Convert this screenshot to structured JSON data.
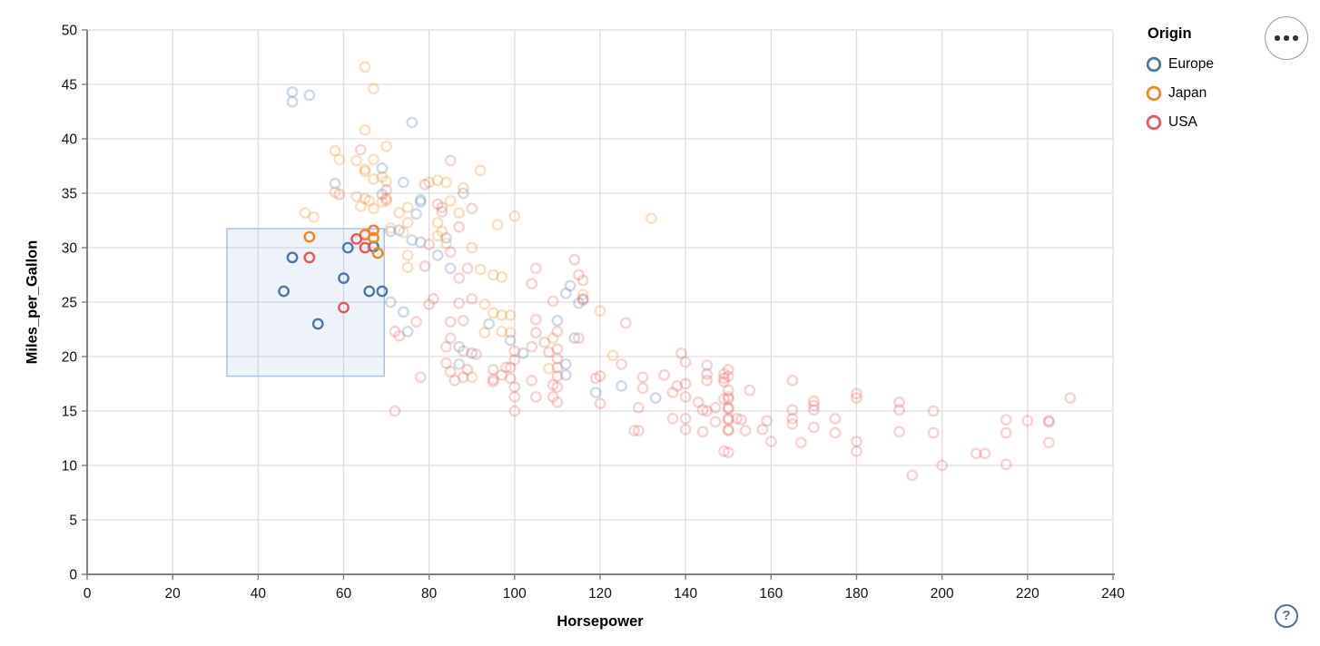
{
  "controls": {
    "menu_icon": "ellipsis-icon",
    "help_icon": "question-mark-icon",
    "help_label": "?"
  },
  "chart_data": {
    "type": "scatter",
    "xlabel": "Horsepower",
    "ylabel": "Miles_per_Gallon",
    "xlim": [
      0,
      240
    ],
    "ylim": [
      0,
      50
    ],
    "xticks": [
      0,
      20,
      40,
      60,
      80,
      100,
      120,
      140,
      160,
      180,
      200,
      220,
      240
    ],
    "yticks": [
      0,
      5,
      10,
      15,
      20,
      25,
      30,
      35,
      40,
      45,
      50
    ],
    "grid": true,
    "colors": {
      "grid": "#dddddd",
      "domain": "#808080",
      "label": "#111111"
    },
    "point_opacity_unselected": 0.27,
    "brush": {
      "x": [
        32.7,
        69.5
      ],
      "y": [
        18.2,
        31.75
      ],
      "fill": "rgba(114,154,210,0.12)",
      "stroke": "#abc2e8"
    },
    "legend": {
      "title": "Origin",
      "position": "top-right",
      "entries": [
        {
          "label": "Europe",
          "color": "#4c78a8"
        },
        {
          "label": "Japan",
          "color": "#f58518"
        },
        {
          "label": "USA",
          "color": "#e45756"
        }
      ]
    },
    "series": [
      {
        "name": "Europe",
        "color": "#4c78a8",
        "selected": [
          [
            48,
            29.1
          ],
          [
            61,
            30
          ],
          [
            67,
            30.1
          ],
          [
            60,
            27.2
          ],
          [
            46,
            26
          ],
          [
            66,
            26
          ],
          [
            69,
            26
          ],
          [
            54,
            23
          ]
        ],
        "unselected": [
          [
            48,
            44.3
          ],
          [
            48,
            43.4
          ],
          [
            52,
            44
          ],
          [
            76,
            41.5
          ],
          [
            69,
            37.3
          ],
          [
            58,
            35.9
          ],
          [
            74,
            36
          ],
          [
            88,
            35
          ],
          [
            78,
            34.2
          ],
          [
            78,
            34.4
          ],
          [
            77,
            33.1
          ],
          [
            69,
            34.9
          ],
          [
            73,
            31.6
          ],
          [
            71,
            31.5
          ],
          [
            76,
            30.7
          ],
          [
            84,
            30.9
          ],
          [
            78,
            30.5
          ],
          [
            82,
            29.3
          ],
          [
            85,
            28.1
          ],
          [
            113,
            26.5
          ],
          [
            112,
            25.8
          ],
          [
            115,
            24.9
          ],
          [
            116,
            25.3
          ],
          [
            71,
            25
          ],
          [
            74,
            24.1
          ],
          [
            75,
            22.3
          ],
          [
            94,
            23
          ],
          [
            87,
            20.9
          ],
          [
            90,
            20.3
          ],
          [
            87,
            19.3
          ],
          [
            99,
            21.5
          ],
          [
            102,
            20.3
          ],
          [
            110,
            23.3
          ],
          [
            112,
            19.3
          ],
          [
            112,
            18.3
          ],
          [
            114,
            21.7
          ],
          [
            119,
            16.7
          ],
          [
            125,
            17.3
          ],
          [
            133,
            16.2
          ]
        ]
      },
      {
        "name": "Japan",
        "color": "#f58518",
        "selected": [
          [
            52,
            31
          ],
          [
            65,
            31.2
          ],
          [
            67,
            31.6
          ],
          [
            67,
            30.9
          ],
          [
            68,
            29.5
          ]
        ],
        "unselected": [
          [
            65,
            46.6
          ],
          [
            67,
            44.6
          ],
          [
            65,
            40.8
          ],
          [
            58,
            38.9
          ],
          [
            70,
            39.3
          ],
          [
            59,
            38.1
          ],
          [
            63,
            38
          ],
          [
            67,
            38.1
          ],
          [
            65,
            37.2
          ],
          [
            67,
            36.3
          ],
          [
            70,
            36.1
          ],
          [
            84,
            36
          ],
          [
            88,
            35.5
          ],
          [
            92,
            37.1
          ],
          [
            70,
            34.3
          ],
          [
            75,
            33.7
          ],
          [
            73,
            33.2
          ],
          [
            75,
            32.3
          ],
          [
            100,
            32.9
          ],
          [
            96,
            32.1
          ],
          [
            82,
            31.1
          ],
          [
            84,
            30.4
          ],
          [
            90,
            30
          ],
          [
            75,
            29.3
          ],
          [
            75,
            28.2
          ],
          [
            92,
            28
          ],
          [
            95,
            27.5
          ],
          [
            97,
            27.3
          ],
          [
            58,
            35.1
          ],
          [
            63,
            34.7
          ],
          [
            65,
            34.5
          ],
          [
            66,
            34.3
          ],
          [
            69,
            34.2
          ],
          [
            67,
            33.6
          ],
          [
            64,
            33.8
          ],
          [
            51,
            33.2
          ],
          [
            53,
            32.8
          ],
          [
            80,
            36
          ],
          [
            82,
            36.2
          ],
          [
            85,
            34.3
          ],
          [
            82,
            32.3
          ],
          [
            83,
            31.5
          ],
          [
            87,
            33.2
          ],
          [
            69,
            36.5
          ],
          [
            65,
            37
          ],
          [
            74,
            31.4
          ],
          [
            71,
            31.8
          ],
          [
            120,
            24.2
          ],
          [
            116,
            25.7
          ],
          [
            93,
            24.8
          ],
          [
            95,
            24
          ],
          [
            97,
            23.8
          ],
          [
            99,
            23.8
          ],
          [
            97,
            22.3
          ],
          [
            99,
            22.2
          ],
          [
            93,
            22.2
          ],
          [
            90,
            18.1
          ],
          [
            108,
            18.9
          ],
          [
            109,
            21.7
          ],
          [
            123,
            20.1
          ],
          [
            132,
            32.7
          ]
        ]
      },
      {
        "name": "USA",
        "color": "#e45756",
        "selected": [
          [
            52,
            29.1
          ],
          [
            63,
            30.8
          ],
          [
            65,
            30
          ],
          [
            60,
            24.5
          ]
        ],
        "unselected": [
          [
            64,
            39
          ],
          [
            79,
            35.8
          ],
          [
            85,
            38
          ],
          [
            70,
            35.3
          ],
          [
            70,
            34.5
          ],
          [
            83,
            33.7
          ],
          [
            90,
            33.6
          ],
          [
            80,
            30.3
          ],
          [
            85,
            29.6
          ],
          [
            79,
            28.3
          ],
          [
            89,
            28.1
          ],
          [
            87,
            27.2
          ],
          [
            105,
            28.1
          ],
          [
            104,
            26.7
          ],
          [
            114,
            28.9
          ],
          [
            115,
            27.5
          ],
          [
            59,
            34.9
          ],
          [
            82,
            34
          ],
          [
            83,
            33.3
          ],
          [
            87,
            31.9
          ],
          [
            116,
            25.2
          ],
          [
            126,
            23.1
          ],
          [
            77,
            23.2
          ],
          [
            72,
            22.3
          ],
          [
            73,
            21.9
          ],
          [
            80,
            24.8
          ],
          [
            81,
            25.3
          ],
          [
            87,
            24.9
          ],
          [
            90,
            25.3
          ],
          [
            88,
            23.3
          ],
          [
            85,
            23.2
          ],
          [
            85,
            21.7
          ],
          [
            84,
            20.9
          ],
          [
            88,
            20.5
          ],
          [
            91,
            20.2
          ],
          [
            89,
            18.8
          ],
          [
            88,
            18.1
          ],
          [
            86,
            17.8
          ],
          [
            85,
            18.6
          ],
          [
            84,
            19.4
          ],
          [
            95,
            17.9
          ],
          [
            97,
            18.3
          ],
          [
            98,
            19
          ],
          [
            99,
            19
          ],
          [
            100,
            19.7
          ],
          [
            100,
            20.5
          ],
          [
            104,
            20.9
          ],
          [
            105,
            23.4
          ],
          [
            105,
            22.2
          ],
          [
            107,
            21.3
          ],
          [
            108,
            20.4
          ],
          [
            109,
            25.1
          ],
          [
            110,
            22.3
          ],
          [
            110,
            20.7
          ],
          [
            110,
            19.8
          ],
          [
            110,
            19
          ],
          [
            110,
            18.2
          ],
          [
            110,
            17.2
          ],
          [
            115,
            21.7
          ],
          [
            119,
            18
          ],
          [
            99,
            18
          ],
          [
            100,
            17.2
          ],
          [
            100,
            16.3
          ],
          [
            105,
            16.3
          ],
          [
            104,
            17.8
          ],
          [
            109,
            16.3
          ],
          [
            110,
            15.8
          ],
          [
            100,
            15
          ],
          [
            72,
            15
          ],
          [
            78,
            18.1
          ],
          [
            95,
            17.7
          ],
          [
            95,
            18.8
          ],
          [
            116,
            27
          ],
          [
            125,
            19.3
          ],
          [
            120,
            18.2
          ],
          [
            130,
            18.1
          ],
          [
            135,
            18.3
          ],
          [
            139,
            20.3
          ],
          [
            140,
            19.5
          ],
          [
            145,
            19.2
          ],
          [
            140,
            17.5
          ],
          [
            145,
            17.8
          ],
          [
            149,
            18
          ],
          [
            109,
            17.4
          ],
          [
            120,
            15.7
          ],
          [
            130,
            17.1
          ],
          [
            129,
            15.3
          ],
          [
            129,
            13.2
          ],
          [
            128,
            13.2
          ],
          [
            137,
            16.7
          ],
          [
            138,
            17.3
          ],
          [
            140,
            16.3
          ],
          [
            137,
            14.3
          ],
          [
            140,
            14.3
          ],
          [
            140,
            13.3
          ],
          [
            143,
            15.8
          ],
          [
            145,
            18.4
          ],
          [
            149,
            18.4
          ],
          [
            149,
            17.7
          ],
          [
            144,
            15.1
          ],
          [
            144,
            13.1
          ],
          [
            147,
            14
          ],
          [
            149,
            16.1
          ],
          [
            150,
            16.1
          ],
          [
            150,
            15.3
          ],
          [
            150,
            15.2
          ],
          [
            150,
            14.3
          ],
          [
            150,
            14.2
          ],
          [
            150,
            13.3
          ],
          [
            150,
            13.2
          ],
          [
            149,
            11.3
          ],
          [
            150,
            18.8
          ],
          [
            150,
            18.2
          ],
          [
            155,
            16.9
          ],
          [
            150,
            16.9
          ],
          [
            150,
            16.3
          ],
          [
            147,
            15.3
          ],
          [
            145,
            15
          ],
          [
            152,
            14.3
          ],
          [
            153,
            14.2
          ],
          [
            150,
            11.2
          ],
          [
            154,
            13.2
          ],
          [
            158,
            13.3
          ],
          [
            159,
            14.1
          ],
          [
            160,
            12.2
          ],
          [
            165,
            17.8
          ],
          [
            165,
            15.1
          ],
          [
            165,
            14.3
          ],
          [
            165,
            13.8
          ],
          [
            167,
            12.1
          ],
          [
            170,
            15.9
          ],
          [
            170,
            15.5
          ],
          [
            170,
            15.1
          ],
          [
            170,
            13.5
          ],
          [
            175,
            14.3
          ],
          [
            175,
            13
          ],
          [
            180,
            16.6
          ],
          [
            180,
            16.2
          ],
          [
            180,
            12.2
          ],
          [
            180,
            11.3
          ],
          [
            190,
            15.8
          ],
          [
            190,
            15.1
          ],
          [
            190,
            13.1
          ],
          [
            193,
            9.1
          ],
          [
            198,
            15
          ],
          [
            198,
            13
          ],
          [
            200,
            10
          ],
          [
            208,
            11.1
          ],
          [
            210,
            11.1
          ],
          [
            215,
            14.2
          ],
          [
            215,
            13
          ],
          [
            220,
            14.1
          ],
          [
            225,
            14.1
          ],
          [
            225,
            14
          ],
          [
            225,
            12.1
          ],
          [
            215,
            10.1
          ],
          [
            230,
            16.2
          ]
        ]
      }
    ]
  }
}
